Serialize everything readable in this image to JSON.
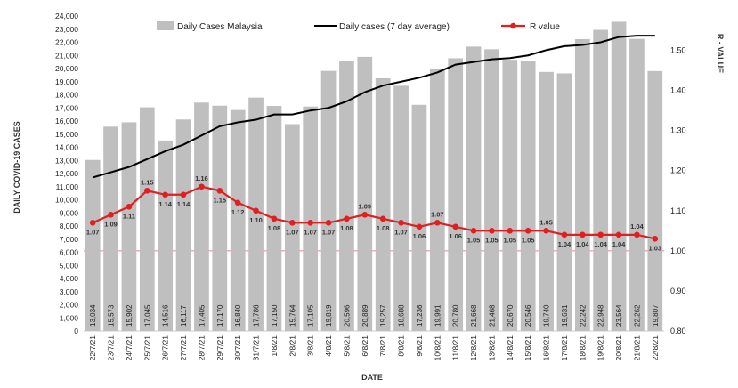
{
  "chart_data": {
    "type": "bar+line",
    "title": "",
    "xlabel": "DATE",
    "ylabel_left": "DAILY COVID-19 CASES",
    "ylabel_right": "R - VALUE",
    "ylim_left": [
      0,
      24000
    ],
    "ylim_right": [
      0.8,
      1.55
    ],
    "left_ticks": [
      "0",
      "1,000",
      "2,000",
      "3,000",
      "4,000",
      "5,000",
      "6,000",
      "7,000",
      "8,000",
      "9,000",
      "10,000",
      "11,000",
      "12,000",
      "13,000",
      "14,000",
      "15,000",
      "16,000",
      "17,000",
      "18,000",
      "19,000",
      "20,000",
      "21,000",
      "22,000",
      "23,000",
      "24,000"
    ],
    "right_ticks": [
      "0.80",
      "0.90",
      "1.00",
      "1.10",
      "1.20",
      "1.30",
      "1.40",
      "1.50"
    ],
    "legend_position": "top",
    "categories": [
      "22/7/21",
      "23/7/21",
      "24/7/21",
      "25/7/21",
      "26/7/21",
      "27/7/21",
      "28/7/21",
      "29/7/21",
      "30/7/21",
      "31/7/21",
      "1/8/21",
      "2/8/21",
      "3/8/21",
      "4/8/21",
      "5/8/21",
      "6/8/21",
      "7/8/21",
      "8/8/21",
      "9/8/21",
      "10/8/21",
      "11/8/21",
      "12/8/21",
      "13/8/21",
      "14/8/21",
      "15/8/21",
      "16/8/21",
      "17/8/21",
      "18/8/21",
      "19/8/21",
      "20/8/21",
      "21/8/21",
      "22/8/21"
    ],
    "series": [
      {
        "name": "Daily Cases Malaysia",
        "kind": "bar",
        "color": "#bfbfbf",
        "values": [
          13034,
          15573,
          15902,
          17045,
          14516,
          16117,
          17405,
          17170,
          16840,
          17786,
          17150,
          15764,
          17105,
          19819,
          20596,
          20889,
          19257,
          18688,
          17236,
          19991,
          20780,
          21668,
          21468,
          20670,
          20546,
          19740,
          19631,
          22242,
          22948,
          23564,
          22262,
          19807
        ],
        "labels": [
          "13,034",
          "15,573",
          "15,902",
          "17,045",
          "14,516",
          "16,117",
          "17,405",
          "17,170",
          "16,840",
          "17,786",
          "17,150",
          "15,764",
          "17,105",
          "19,819",
          "20,596",
          "20,889",
          "19,257",
          "18,688",
          "17,236",
          "19,991",
          "20,780",
          "21,668",
          "21,468",
          "20,670",
          "20,546",
          "19,740",
          "19,631",
          "22,242",
          "22,948",
          "23,564",
          "22,262",
          "19,807"
        ]
      },
      {
        "name": "Daily cases (7 day average)",
        "kind": "line",
        "color": "#000000",
        "values": [
          11700,
          12100,
          12500,
          13100,
          13700,
          14200,
          14900,
          15600,
          15900,
          16100,
          16500,
          16500,
          16800,
          17000,
          17500,
          18200,
          18700,
          19000,
          19300,
          19700,
          20300,
          20500,
          20700,
          20800,
          21000,
          21400,
          21700,
          21800,
          22000,
          22400,
          22500,
          22500
        ]
      },
      {
        "name": "R value",
        "kind": "line-marker",
        "color": "#e02020",
        "values": [
          1.07,
          1.09,
          1.11,
          1.15,
          1.14,
          1.14,
          1.16,
          1.15,
          1.12,
          1.1,
          1.08,
          1.07,
          1.07,
          1.07,
          1.08,
          1.09,
          1.08,
          1.07,
          1.06,
          1.07,
          1.06,
          1.05,
          1.05,
          1.05,
          1.05,
          1.05,
          1.04,
          1.04,
          1.04,
          1.04,
          1.04,
          1.03
        ],
        "labels": [
          "1.07",
          "1.09",
          "1.11",
          "1.15",
          "1.14",
          "1.14",
          "1.16",
          "1.15",
          "1.12",
          "1.10",
          "1.08",
          "1.07",
          "1.07",
          "1.07",
          "1.08",
          "1.09",
          "1.08",
          "1.07",
          "1.06",
          "1.07",
          "1.06",
          "1.05",
          "1.05",
          "1.05",
          "1.05",
          "1.05",
          "1.04",
          "1.04",
          "1.04",
          "1.04",
          "1.04",
          "1.03"
        ]
      }
    ],
    "reference_line": {
      "axis": "right",
      "value": 1.0,
      "color": "#e06060"
    },
    "grid": false
  }
}
